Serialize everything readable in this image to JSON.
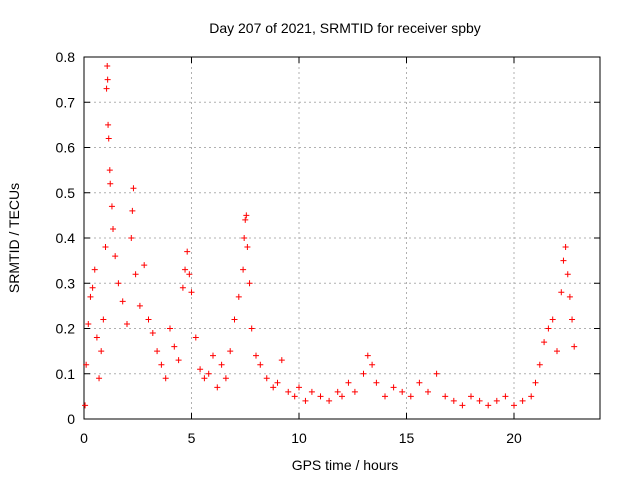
{
  "chart_data": {
    "type": "scatter",
    "title": "Day 207 of 2021, SRMTID for receiver spby",
    "xlabel": "GPS time / hours",
    "ylabel": "SRMTID / TECUs",
    "xlim": [
      0,
      24
    ],
    "ylim": [
      0,
      0.8
    ],
    "xticks": [
      0,
      5,
      10,
      15,
      20
    ],
    "yticks": [
      0,
      0.1,
      0.2,
      0.3,
      0.4,
      0.5,
      0.6,
      0.7,
      0.8
    ],
    "xtick_labels": [
      "0",
      "5",
      "10",
      "15",
      "20"
    ],
    "ytick_labels": [
      "0",
      "0.1",
      "0.2",
      "0.3",
      "0.4",
      "0.5",
      "0.6",
      "0.7",
      "0.8"
    ],
    "grid": true,
    "marker": "+",
    "series": [
      {
        "name": "SRMTID",
        "color": "#ff0000",
        "points": [
          [
            0.05,
            0.03
          ],
          [
            0.1,
            0.12
          ],
          [
            0.2,
            0.21
          ],
          [
            0.3,
            0.27
          ],
          [
            0.4,
            0.29
          ],
          [
            0.5,
            0.33
          ],
          [
            0.6,
            0.18
          ],
          [
            0.7,
            0.09
          ],
          [
            0.8,
            0.15
          ],
          [
            0.9,
            0.22
          ],
          [
            1.0,
            0.38
          ],
          [
            1.05,
            0.73
          ],
          [
            1.08,
            0.78
          ],
          [
            1.1,
            0.75
          ],
          [
            1.12,
            0.65
          ],
          [
            1.15,
            0.62
          ],
          [
            1.2,
            0.55
          ],
          [
            1.22,
            0.52
          ],
          [
            1.3,
            0.47
          ],
          [
            1.35,
            0.42
          ],
          [
            1.45,
            0.36
          ],
          [
            1.6,
            0.3
          ],
          [
            1.8,
            0.26
          ],
          [
            2.0,
            0.21
          ],
          [
            2.2,
            0.4
          ],
          [
            2.25,
            0.46
          ],
          [
            2.3,
            0.51
          ],
          [
            2.4,
            0.32
          ],
          [
            2.6,
            0.25
          ],
          [
            2.8,
            0.34
          ],
          [
            3.0,
            0.22
          ],
          [
            3.2,
            0.19
          ],
          [
            3.4,
            0.15
          ],
          [
            3.6,
            0.12
          ],
          [
            3.8,
            0.09
          ],
          [
            4.0,
            0.2
          ],
          [
            4.2,
            0.16
          ],
          [
            4.4,
            0.13
          ],
          [
            4.6,
            0.29
          ],
          [
            4.7,
            0.33
          ],
          [
            4.8,
            0.37
          ],
          [
            4.9,
            0.32
          ],
          [
            5.0,
            0.28
          ],
          [
            5.2,
            0.18
          ],
          [
            5.4,
            0.11
          ],
          [
            5.6,
            0.09
          ],
          [
            5.8,
            0.1
          ],
          [
            6.0,
            0.14
          ],
          [
            6.2,
            0.07
          ],
          [
            6.4,
            0.12
          ],
          [
            6.6,
            0.09
          ],
          [
            6.8,
            0.15
          ],
          [
            7.0,
            0.22
          ],
          [
            7.2,
            0.27
          ],
          [
            7.4,
            0.33
          ],
          [
            7.45,
            0.4
          ],
          [
            7.5,
            0.44
          ],
          [
            7.55,
            0.45
          ],
          [
            7.6,
            0.38
          ],
          [
            7.7,
            0.3
          ],
          [
            7.8,
            0.2
          ],
          [
            8.0,
            0.14
          ],
          [
            8.2,
            0.12
          ],
          [
            8.5,
            0.09
          ],
          [
            8.8,
            0.07
          ],
          [
            9.0,
            0.08
          ],
          [
            9.2,
            0.13
          ],
          [
            9.5,
            0.06
          ],
          [
            9.8,
            0.05
          ],
          [
            10.0,
            0.07
          ],
          [
            10.3,
            0.04
          ],
          [
            10.6,
            0.06
          ],
          [
            11.0,
            0.05
          ],
          [
            11.4,
            0.04
          ],
          [
            11.8,
            0.06
          ],
          [
            12.0,
            0.05
          ],
          [
            12.3,
            0.08
          ],
          [
            12.6,
            0.06
          ],
          [
            13.0,
            0.1
          ],
          [
            13.2,
            0.14
          ],
          [
            13.4,
            0.12
          ],
          [
            13.6,
            0.08
          ],
          [
            14.0,
            0.05
          ],
          [
            14.4,
            0.07
          ],
          [
            14.8,
            0.06
          ],
          [
            15.2,
            0.05
          ],
          [
            15.6,
            0.08
          ],
          [
            16.0,
            0.06
          ],
          [
            16.4,
            0.1
          ],
          [
            16.8,
            0.05
          ],
          [
            17.2,
            0.04
          ],
          [
            17.6,
            0.03
          ],
          [
            18.0,
            0.05
          ],
          [
            18.4,
            0.04
          ],
          [
            18.8,
            0.03
          ],
          [
            19.2,
            0.04
          ],
          [
            19.6,
            0.05
          ],
          [
            20.0,
            0.03
          ],
          [
            20.4,
            0.04
          ],
          [
            20.8,
            0.05
          ],
          [
            21.0,
            0.08
          ],
          [
            21.2,
            0.12
          ],
          [
            21.4,
            0.17
          ],
          [
            21.6,
            0.2
          ],
          [
            21.8,
            0.22
          ],
          [
            22.0,
            0.15
          ],
          [
            22.2,
            0.28
          ],
          [
            22.3,
            0.35
          ],
          [
            22.4,
            0.38
          ],
          [
            22.5,
            0.32
          ],
          [
            22.6,
            0.27
          ],
          [
            22.7,
            0.22
          ],
          [
            22.8,
            0.16
          ]
        ]
      }
    ]
  }
}
